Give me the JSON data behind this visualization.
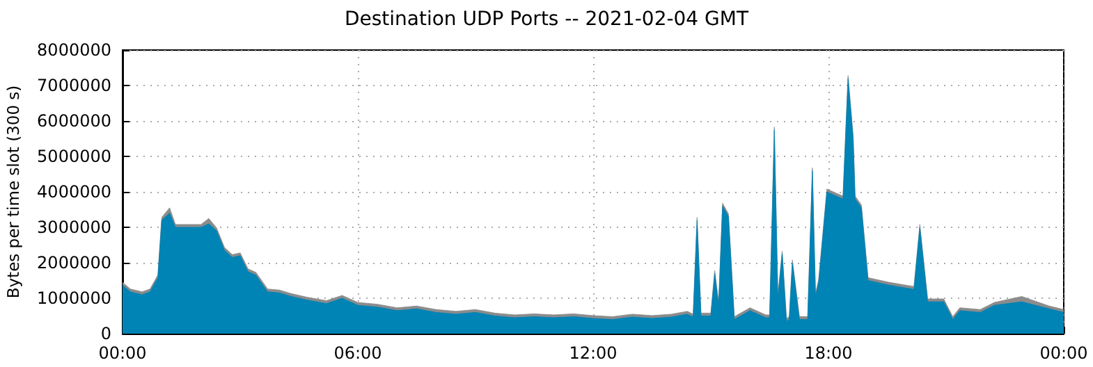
{
  "chart_data": {
    "type": "area",
    "stacked": true,
    "title": "Destination UDP Ports -- 2021-02-04 GMT",
    "ylabel": "Bytes per time slot (300 s)",
    "x": [
      0,
      0.2,
      0.5,
      0.7,
      0.9,
      1.0,
      1.2,
      1.35,
      1.6,
      2.0,
      2.2,
      2.4,
      2.6,
      2.8,
      3.0,
      3.2,
      3.4,
      3.7,
      4.0,
      4.3,
      4.7,
      5.2,
      5.6,
      6.0,
      6.5,
      7.0,
      7.5,
      8.0,
      8.5,
      9.0,
      9.5,
      10,
      10.5,
      11,
      11.5,
      12,
      12.5,
      13,
      13.5,
      14,
      14.4,
      14.55,
      14.65,
      14.75,
      15.0,
      15.1,
      15.2,
      15.3,
      15.45,
      15.6,
      16.0,
      16.4,
      16.5,
      16.62,
      16.71,
      16.82,
      16.93,
      17.0,
      17.08,
      17.26,
      17.47,
      17.59,
      17.67,
      17.75,
      17.96,
      18.37,
      18.5,
      18.63,
      18.68,
      18.84,
      19.01,
      19.54,
      20.18,
      20.33,
      20.53,
      20.94,
      21.17,
      21.35,
      21.87,
      22.23,
      22.93,
      23.63,
      24
    ],
    "series": [
      {
        "color": "#0083b5",
        "values": [
          1370000,
          1180000,
          1100000,
          1180000,
          1570000,
          3200000,
          3400000,
          3000000,
          3000000,
          3000000,
          3100000,
          2900000,
          2350000,
          2150000,
          2200000,
          1750000,
          1650000,
          1180000,
          1150000,
          1050000,
          950000,
          850000,
          1000000,
          800000,
          750000,
          650000,
          700000,
          600000,
          550000,
          600000,
          500000,
          450000,
          480000,
          450000,
          480000,
          430000,
          400000,
          470000,
          430000,
          470000,
          550000,
          470000,
          3200000,
          500000,
          500000,
          1700000,
          800000,
          3600000,
          3300000,
          400000,
          650000,
          450000,
          450000,
          5750000,
          1000000,
          2250000,
          350000,
          400000,
          2000000,
          400000,
          400000,
          4600000,
          1050000,
          1450000,
          4000000,
          3800000,
          7200000,
          5500000,
          3800000,
          3550000,
          1500000,
          1370000,
          1250000,
          3000000,
          900000,
          900000,
          400000,
          650000,
          600000,
          800000,
          900000,
          700000,
          600000
        ]
      },
      {
        "color": "#8c8c8c",
        "values": [
          80000,
          80000,
          80000,
          80000,
          80000,
          80000,
          150000,
          80000,
          80000,
          80000,
          150000,
          80000,
          80000,
          80000,
          80000,
          80000,
          80000,
          80000,
          80000,
          80000,
          80000,
          80000,
          80000,
          80000,
          80000,
          80000,
          80000,
          80000,
          80000,
          80000,
          80000,
          80000,
          80000,
          80000,
          80000,
          80000,
          80000,
          80000,
          80000,
          80000,
          80000,
          80000,
          80000,
          80000,
          80000,
          80000,
          80000,
          80000,
          80000,
          80000,
          80000,
          80000,
          80000,
          80000,
          80000,
          80000,
          80000,
          80000,
          80000,
          80000,
          80000,
          80000,
          80000,
          80000,
          80000,
          80000,
          80000,
          80000,
          80000,
          80000,
          80000,
          80000,
          80000,
          80000,
          80000,
          80000,
          80000,
          80000,
          80000,
          80000,
          150000,
          80000,
          80000
        ]
      }
    ],
    "xlim": [
      0,
      24
    ],
    "xticks": [
      {
        "value": 0,
        "label": "00:00"
      },
      {
        "value": 6,
        "label": "06:00"
      },
      {
        "value": 12,
        "label": "12:00"
      },
      {
        "value": 18,
        "label": "18:00"
      },
      {
        "value": 24,
        "label": "00:00"
      }
    ],
    "ylim": [
      0,
      8000000
    ],
    "yticks": [
      0,
      1000000,
      2000000,
      3000000,
      4000000,
      5000000,
      6000000,
      7000000,
      8000000
    ],
    "grid": true
  }
}
